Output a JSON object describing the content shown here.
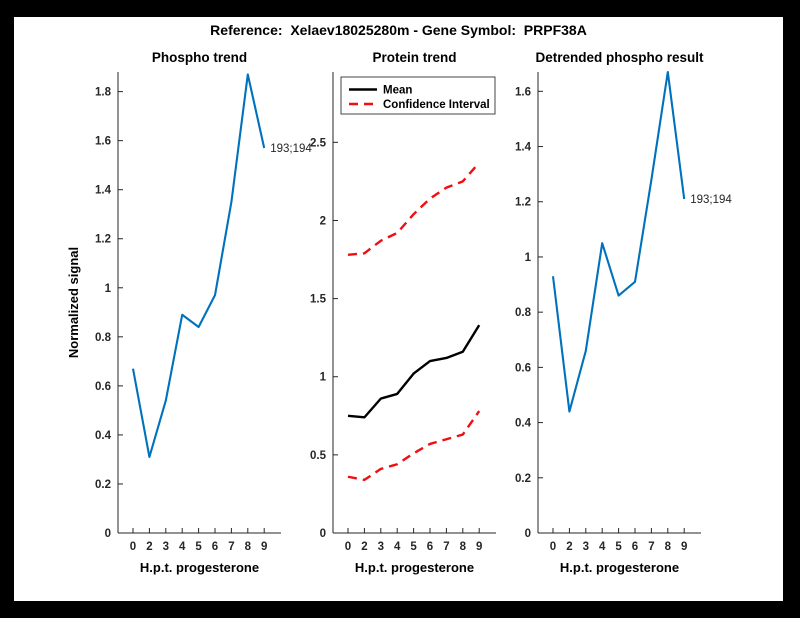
{
  "page_title": "Reference:  Xelaev18025280m - Gene Symbol:  PRPF38A",
  "colors": {
    "background": "#000000",
    "figure_background": "#ffffff",
    "line_blue": "#0072bd",
    "line_red": "#f10e10",
    "line_black": "#000000",
    "axis_color": "#262626"
  },
  "chart_data": [
    {
      "type": "line",
      "title": "Phospho trend",
      "xlabel": "H.p.t. progesterone",
      "ylabel": "Normalized signal",
      "categories": [
        "0",
        "2",
        "3",
        "4",
        "5",
        "6",
        "7",
        "8",
        "9"
      ],
      "ylim": [
        0,
        1.88
      ],
      "yticks": [
        0,
        0.2,
        0.4,
        0.6,
        0.8,
        1,
        1.2,
        1.4,
        1.6,
        1.8
      ],
      "ytick_labels": [
        "0",
        "0.2",
        "0.4",
        "0.6",
        "0.8",
        "1",
        "1.2",
        "1.4",
        "1.6",
        "1.8"
      ],
      "grid": false,
      "series": [
        {
          "name": "Phospho signal",
          "color": "#0072bd",
          "style": "solid",
          "width": 2.1,
          "values": [
            0.67,
            0.31,
            0.54,
            0.89,
            0.84,
            0.97,
            1.35,
            1.87,
            1.57
          ]
        }
      ],
      "annotation": {
        "text": "193;194",
        "index": 8,
        "value": 1.57
      }
    },
    {
      "type": "line",
      "title": "Protein trend",
      "xlabel": "H.p.t. progesterone",
      "ylabel": "",
      "categories": [
        "0",
        "2",
        "3",
        "4",
        "5",
        "6",
        "7",
        "8",
        "9"
      ],
      "ylim": [
        0,
        2.95
      ],
      "yticks": [
        0,
        0.5,
        1,
        1.5,
        2,
        2.5
      ],
      "ytick_labels": [
        "0",
        "0.5",
        "1",
        "1.5",
        "2",
        "2.5"
      ],
      "grid": false,
      "series": [
        {
          "name": "Mean",
          "color": "#000000",
          "style": "solid",
          "width": 2.4,
          "values": [
            0.75,
            0.74,
            0.86,
            0.89,
            1.02,
            1.1,
            1.12,
            1.16,
            1.33
          ]
        },
        {
          "name": "Confidence Interval upper",
          "color": "#f10e10",
          "style": "dashed",
          "width": 2.4,
          "values": [
            1.78,
            1.79,
            1.87,
            1.92,
            2.04,
            2.14,
            2.21,
            2.25,
            2.37
          ]
        },
        {
          "name": "Confidence Interval lower",
          "color": "#f10e10",
          "style": "dashed",
          "width": 2.4,
          "values": [
            0.36,
            0.34,
            0.41,
            0.44,
            0.51,
            0.57,
            0.6,
            0.63,
            0.78
          ]
        }
      ],
      "legend": {
        "position": "top-left",
        "entries": [
          {
            "label": "Mean",
            "color": "#000000",
            "style": "solid"
          },
          {
            "label": "Confidence Interval",
            "color": "#f10e10",
            "style": "dashed"
          }
        ]
      }
    },
    {
      "type": "line",
      "title": "Detrended phospho result",
      "xlabel": "H.p.t. progesterone",
      "ylabel": "",
      "categories": [
        "0",
        "2",
        "3",
        "4",
        "5",
        "6",
        "7",
        "8",
        "9"
      ],
      "ylim": [
        0,
        1.67
      ],
      "yticks": [
        0,
        0.2,
        0.4,
        0.6,
        0.8,
        1,
        1.2,
        1.4,
        1.6
      ],
      "ytick_labels": [
        "0",
        "0.2",
        "0.4",
        "0.6",
        "0.8",
        "1",
        "1.2",
        "1.4",
        "1.6"
      ],
      "grid": false,
      "series": [
        {
          "name": "Detrended phospho",
          "color": "#0072bd",
          "style": "solid",
          "width": 2.1,
          "values": [
            0.93,
            0.44,
            0.66,
            1.05,
            0.86,
            0.91,
            1.28,
            1.67,
            1.21
          ]
        }
      ],
      "annotation": {
        "text": "193;194",
        "index": 8,
        "value": 1.21
      }
    }
  ]
}
